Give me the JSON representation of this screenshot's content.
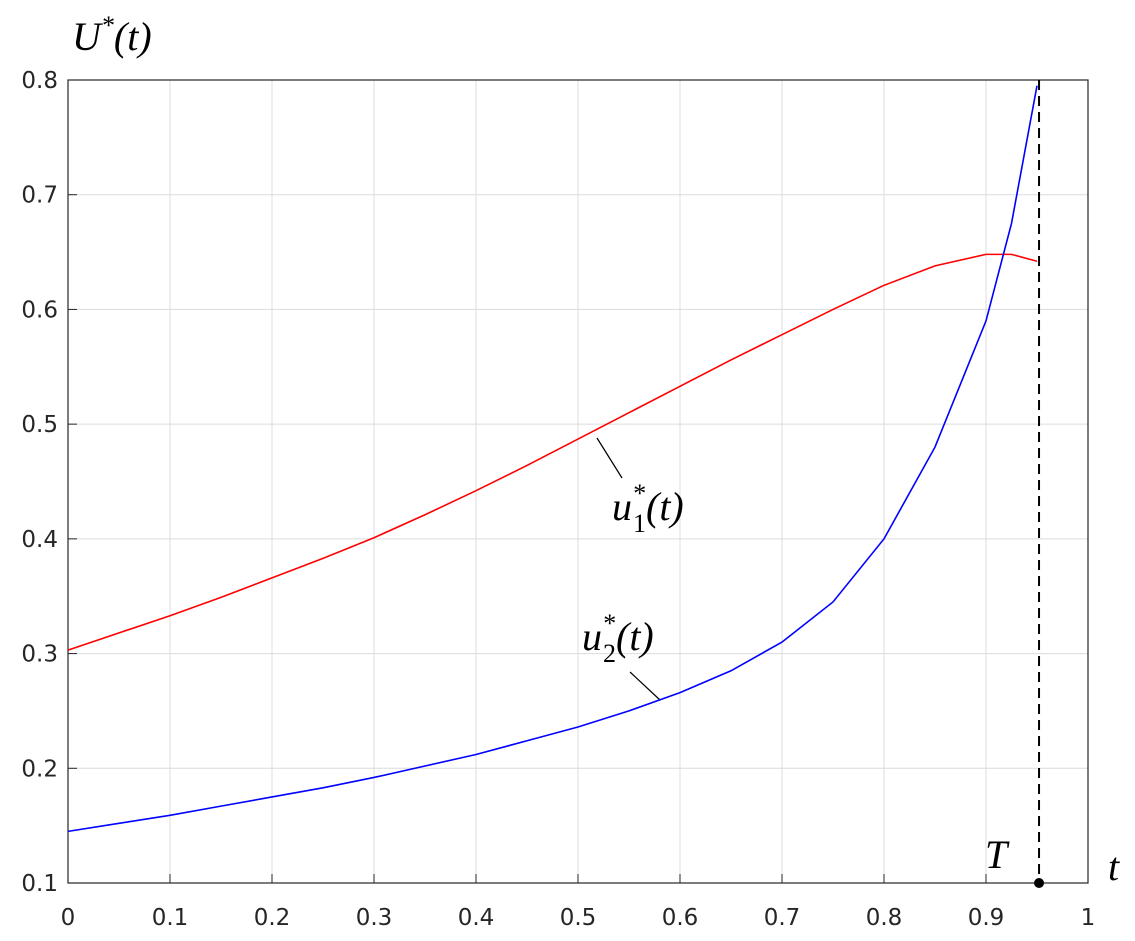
{
  "chart_data": {
    "type": "line",
    "y_label": [
      "U",
      "*",
      "(t)"
    ],
    "x_label": "t",
    "x": [
      0,
      0.05,
      0.1,
      0.15,
      0.2,
      0.25,
      0.3,
      0.35,
      0.4,
      0.45,
      0.5,
      0.55,
      0.6,
      0.65,
      0.7,
      0.75,
      0.8,
      0.85,
      0.9,
      0.925,
      0.95
    ],
    "series": [
      {
        "name": [
          "u",
          "*",
          "1",
          "(t)"
        ],
        "color": "#ff0000",
        "values": [
          0.303,
          0.318,
          0.333,
          0.349,
          0.366,
          0.383,
          0.401,
          0.421,
          0.442,
          0.464,
          0.487,
          0.51,
          0.533,
          0.556,
          0.578,
          0.6,
          0.621,
          0.638,
          0.648,
          0.648,
          0.642
        ]
      },
      {
        "name": [
          "u",
          "*",
          "2",
          "(t)"
        ],
        "color": "#0000ff",
        "values": [
          0.145,
          0.152,
          0.159,
          0.167,
          0.175,
          0.183,
          0.192,
          0.202,
          0.212,
          0.224,
          0.236,
          0.25,
          0.266,
          0.285,
          0.31,
          0.345,
          0.4,
          0.48,
          0.59,
          0.675,
          0.795
        ]
      }
    ],
    "marker": {
      "label": "T",
      "x": 0.952
    },
    "xlim": [
      0,
      1
    ],
    "xticks": [
      0,
      0.1,
      0.2,
      0.3,
      0.4,
      0.5,
      0.6,
      0.7,
      0.8,
      0.9,
      1
    ],
    "ylim": [
      0.1,
      0.8
    ],
    "yticks": [
      0.1,
      0.2,
      0.3,
      0.4,
      0.5,
      0.6,
      0.7,
      0.8
    ],
    "grid": true
  }
}
